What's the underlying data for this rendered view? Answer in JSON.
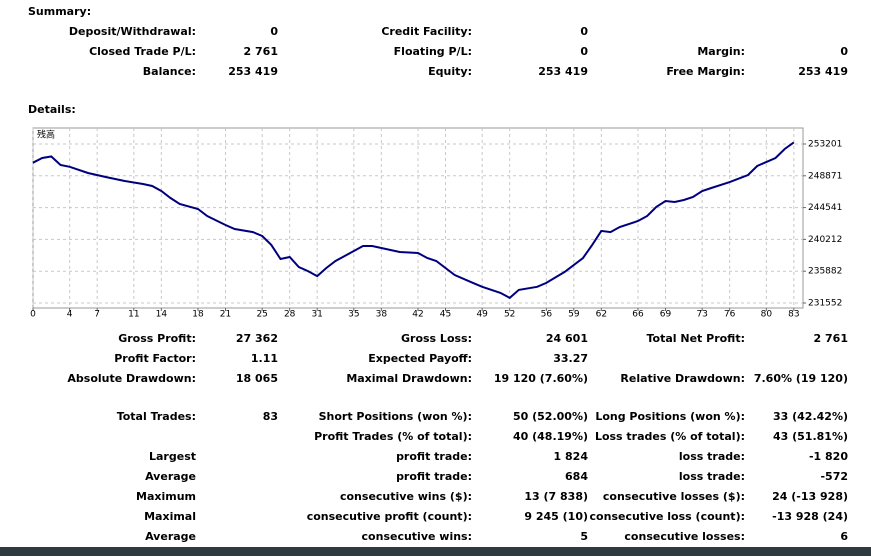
{
  "summary": {
    "title": "Summary:",
    "rows": [
      [
        {
          "label": "Deposit/Withdrawal:",
          "value": "0"
        },
        {
          "label": "Credit Facility:",
          "value": "0"
        },
        null
      ],
      [
        {
          "label": "Closed Trade P/L:",
          "value": "2 761"
        },
        {
          "label": "Floating P/L:",
          "value": "0"
        },
        {
          "label": "Margin:",
          "value": "0"
        }
      ],
      [
        {
          "label": "Balance:",
          "value": "253 419"
        },
        {
          "label": "Equity:",
          "value": "253 419"
        },
        {
          "label": "Free Margin:",
          "value": "253 419"
        }
      ]
    ]
  },
  "details": {
    "title": "Details:",
    "sections": [
      [
        [
          {
            "label": "Gross Profit:",
            "value": "27 362"
          },
          {
            "label": "Gross Loss:",
            "value": "24 601"
          },
          {
            "label": "Total Net Profit:",
            "value": "2 761"
          }
        ],
        [
          {
            "label": "Profit Factor:",
            "value": "1.11"
          },
          {
            "label": "Expected Payoff:",
            "value": "33.27"
          },
          null
        ],
        [
          {
            "label": "Absolute Drawdown:",
            "value": "18 065"
          },
          {
            "label": "Maximal Drawdown:",
            "value": "19 120 (7.60%)"
          },
          {
            "label": "Relative Drawdown:",
            "value": "7.60% (19 120)"
          }
        ]
      ],
      [
        [
          {
            "label": "Total Trades:",
            "value": "83"
          },
          {
            "label": "Short Positions (won %):",
            "value": "50 (52.00%)"
          },
          {
            "label": "Long Positions (won %):",
            "value": "33 (42.42%)"
          }
        ],
        [
          null,
          {
            "label": "Profit Trades (% of total):",
            "value": "40 (48.19%)"
          },
          {
            "label": "Loss trades (% of total):",
            "value": "43 (51.81%)"
          }
        ],
        [
          {
            "label": "Largest"
          },
          {
            "label": "profit trade:",
            "value": "1 824"
          },
          {
            "label": "loss trade:",
            "value": "-1 820"
          }
        ],
        [
          {
            "label": "Average"
          },
          {
            "label": "profit trade:",
            "value": "684"
          },
          {
            "label": "loss trade:",
            "value": "-572"
          }
        ],
        [
          {
            "label": "Maximum"
          },
          {
            "label": "consecutive wins ($):",
            "value": "13 (7 838)"
          },
          {
            "label": "consecutive losses ($):",
            "value": "24 (-13 928)"
          }
        ],
        [
          {
            "label": "Maximal"
          },
          {
            "label": "consecutive profit (count):",
            "value": "9 245 (10)"
          },
          {
            "label": "consecutive loss (count):",
            "value": "-13 928 (24)"
          }
        ],
        [
          {
            "label": "Average"
          },
          {
            "label": "consecutive wins:",
            "value": "5"
          },
          {
            "label": "consecutive losses:",
            "value": "6"
          }
        ]
      ]
    ]
  },
  "chart": {
    "type": "line",
    "label": "残高",
    "color": "#00007f",
    "grid": true,
    "xlim": [
      0,
      84
    ],
    "ylim": [
      230870,
      255380
    ],
    "xticks": [
      0,
      4,
      7,
      11,
      14,
      18,
      21,
      25,
      28,
      31,
      35,
      38,
      42,
      45,
      49,
      52,
      56,
      59,
      62,
      66,
      69,
      73,
      76,
      80,
      83
    ],
    "yticks": [
      231552,
      235882,
      240212,
      244541,
      248871,
      253201
    ],
    "x": [
      0,
      1,
      2,
      3,
      4,
      6,
      8,
      10,
      12,
      13,
      14,
      15,
      16,
      18,
      19,
      21,
      22,
      24,
      25,
      26,
      27,
      28,
      29,
      30,
      31,
      32,
      33,
      34,
      36,
      37,
      38,
      40,
      42,
      43,
      44,
      46,
      48,
      49,
      51,
      52,
      53,
      55,
      56,
      58,
      60,
      61,
      62,
      63,
      64,
      66,
      67,
      68,
      69,
      70,
      71,
      72,
      73,
      74,
      76,
      78,
      79,
      81,
      82,
      83
    ],
    "values": [
      250658,
      251300,
      251500,
      250340,
      250100,
      249250,
      248700,
      248160,
      247750,
      247480,
      246800,
      245850,
      245030,
      244350,
      243400,
      242170,
      241630,
      241210,
      240670,
      239460,
      237540,
      237820,
      236450,
      235900,
      235220,
      236320,
      237270,
      237950,
      239310,
      239310,
      239040,
      238490,
      238360,
      237680,
      237270,
      235360,
      234290,
      233750,
      232930,
      232250,
      233340,
      233750,
      234290,
      235790,
      237680,
      239460,
      241370,
      241210,
      241900,
      242720,
      243400,
      244630,
      245440,
      245300,
      245570,
      245980,
      246800,
      247210,
      248020,
      248980,
      250200,
      251300,
      252520,
      253419
    ]
  }
}
